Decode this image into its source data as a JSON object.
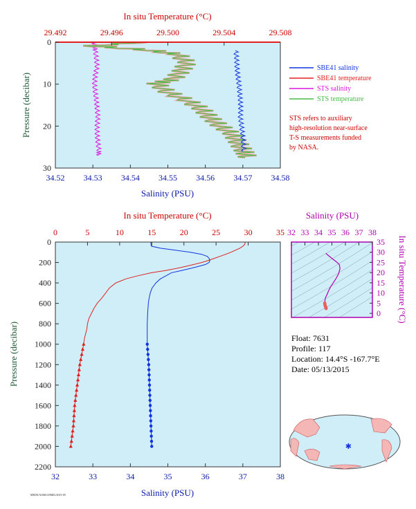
{
  "colors": {
    "salinity_axis": "#0a1aa8",
    "temperature_axis": "#cc0000",
    "pressure_axis": "#1e5a35",
    "inset_axis": "#b000b0",
    "plot_bg": "#cfeef8",
    "sbe41_salinity": "#1133dd",
    "sbe41_temperature": "#e02020",
    "sts_salinity": "#dd11dd",
    "sts_temperature": "#44bb44",
    "sts_temperature_fill": "#f5a0a0"
  },
  "footer": {
    "code": "MEDS/AOML/ISMIG/2015-05"
  },
  "chart_data": [
    {
      "id": "near-surface",
      "type": "line",
      "title": "",
      "top_xlabel": "In situ Temperature (°C)",
      "xlabel": "Salinity (PSU)",
      "ylabel": "Pressure (decibar)",
      "top_xlim": [
        29.492,
        29.508
      ],
      "top_ticks": [
        "29.492",
        "29.496",
        "29.500",
        "29.504",
        "29.508"
      ],
      "xlim": [
        34.52,
        34.58
      ],
      "x_ticks": [
        "34.52",
        "34.53",
        "34.54",
        "34.55",
        "34.56",
        "34.57",
        "34.58"
      ],
      "ylim": [
        30,
        0
      ],
      "y_ticks": [
        "0",
        "10",
        "20",
        "30"
      ],
      "legend": [
        "SBE41 salinity",
        "SBE41 temperature",
        "STS salinity",
        "STS temperature"
      ],
      "note": [
        "STS refers to auxiliary",
        "high-resolution near-surface",
        "T-S measurements funded",
        "by NASA."
      ],
      "series": [
        {
          "name": "STS salinity",
          "axis": "bottom",
          "y": [
            0,
            1,
            2,
            4,
            6,
            8,
            10,
            12,
            14,
            16,
            18,
            20,
            22,
            24,
            26,
            27
          ],
          "x": [
            34.53,
            34.5305,
            34.5305,
            34.5308,
            34.531,
            34.5305,
            34.5303,
            34.5305,
            34.5308,
            34.531,
            34.5312,
            34.531,
            34.531,
            34.5312,
            34.5315,
            34.5315
          ]
        },
        {
          "name": "STS temperature",
          "axis": "top",
          "y": [
            0,
            1,
            2,
            3,
            5,
            7,
            9,
            10,
            12,
            14,
            16,
            18,
            20,
            22,
            24,
            26,
            27.5
          ],
          "x": [
            29.4985,
            29.4945,
            29.4985,
            29.5005,
            29.5012,
            29.5008,
            29.5002,
            29.499,
            29.4998,
            29.5012,
            29.5022,
            29.5028,
            29.5035,
            29.5044,
            29.5048,
            29.5052,
            29.5055
          ]
        },
        {
          "name": "SBE41 salinity",
          "axis": "bottom",
          "y": [
            2,
            4,
            6,
            8,
            10,
            12,
            14,
            16,
            18,
            20,
            22,
            24,
            26
          ],
          "x": [
            34.568,
            34.5682,
            34.5683,
            34.5685,
            34.5688,
            34.569,
            34.5692,
            34.5693,
            34.5692,
            34.5695,
            34.5698,
            34.57,
            34.5701
          ]
        },
        {
          "name": "SBE41 temperature",
          "axis": "top",
          "y": [],
          "x": []
        }
      ]
    },
    {
      "id": "full-profile",
      "type": "line",
      "title": "",
      "top_xlabel": "In situ Temperature (°C)",
      "xlabel": "Salinity (PSU)",
      "ylabel": "Pressure (decibar)",
      "top_xlim": [
        0,
        35
      ],
      "top_ticks": [
        "0",
        "5",
        "10",
        "15",
        "20",
        "25",
        "30",
        "35"
      ],
      "xlim": [
        32,
        38
      ],
      "x_ticks": [
        "32",
        "33",
        "34",
        "35",
        "36",
        "37",
        "38"
      ],
      "ylim": [
        2200,
        0
      ],
      "y_ticks": [
        "0",
        "200",
        "400",
        "600",
        "800",
        "1000",
        "1200",
        "1400",
        "1600",
        "1800",
        "2000",
        "2200"
      ],
      "series": [
        {
          "name": "Temperature",
          "axis": "top",
          "y": [
            0,
            20,
            40,
            60,
            80,
            100,
            120,
            140,
            160,
            180,
            200,
            220,
            250,
            280,
            300,
            330,
            360,
            400,
            450,
            500,
            550,
            600,
            650,
            700,
            750,
            800,
            850,
            900,
            950,
            1000,
            1100,
            1200,
            1300,
            1400,
            1500,
            1600,
            1700,
            1800,
            1900,
            2000
          ],
          "x": [
            29.5,
            29.5,
            29.2,
            28.7,
            28.0,
            27.3,
            26.5,
            25.6,
            24.7,
            23.8,
            22.8,
            21.5,
            19.5,
            17.0,
            15.0,
            12.8,
            11.0,
            9.4,
            8.4,
            7.8,
            7.2,
            6.5,
            6.0,
            5.6,
            5.2,
            5.0,
            4.9,
            4.7,
            4.5,
            4.4,
            4.1,
            3.8,
            3.6,
            3.4,
            3.2,
            3.0,
            2.9,
            2.8,
            2.6,
            2.4
          ]
        },
        {
          "name": "Salinity",
          "axis": "bottom",
          "y": [
            0,
            20,
            40,
            60,
            80,
            100,
            120,
            140,
            160,
            180,
            200,
            220,
            250,
            280,
            300,
            330,
            360,
            400,
            450,
            500,
            550,
            600,
            650,
            700,
            800,
            900,
            1000,
            1100,
            1200,
            1300,
            1400,
            1500,
            1600,
            1700,
            1800,
            1900,
            2000
          ],
          "x": [
            34.55,
            34.55,
            34.56,
            34.8,
            35.2,
            35.6,
            35.9,
            36.05,
            36.1,
            36.12,
            36.1,
            36.0,
            35.7,
            35.35,
            35.1,
            34.95,
            34.8,
            34.68,
            34.58,
            34.53,
            34.5,
            34.48,
            34.47,
            34.46,
            34.45,
            34.45,
            34.45,
            34.47,
            34.49,
            34.5,
            34.51,
            34.52,
            34.53,
            34.54,
            34.55,
            34.56,
            34.57
          ]
        },
        {
          "name": "Temperature markers",
          "axis": "top",
          "marker": "triangle",
          "y": [
            1000,
            1050,
            1100,
            1150,
            1200,
            1250,
            1300,
            1350,
            1400,
            1450,
            1500,
            1550,
            1600,
            1650,
            1700,
            1750,
            1800,
            1850,
            1900,
            1950,
            2000
          ],
          "x": [
            4.4,
            4.25,
            4.1,
            3.95,
            3.8,
            3.7,
            3.6,
            3.5,
            3.4,
            3.3,
            3.2,
            3.1,
            3.0,
            2.95,
            2.9,
            2.85,
            2.8,
            2.7,
            2.6,
            2.5,
            2.4
          ]
        },
        {
          "name": "Salinity markers",
          "axis": "bottom",
          "marker": "circle",
          "y": [
            1000,
            1050,
            1100,
            1150,
            1200,
            1250,
            1300,
            1350,
            1400,
            1450,
            1500,
            1550,
            1600,
            1650,
            1700,
            1750,
            1800,
            1850,
            1900,
            1950,
            2000
          ],
          "x": [
            34.45,
            34.46,
            34.47,
            34.48,
            34.49,
            34.495,
            34.5,
            34.505,
            34.51,
            34.515,
            34.52,
            34.525,
            34.53,
            34.535,
            34.54,
            34.545,
            34.55,
            34.555,
            34.56,
            34.565,
            34.57
          ]
        }
      ]
    },
    {
      "id": "ts-inset",
      "type": "scatter",
      "title": "",
      "top_xlabel": "Salinity (PSU)",
      "right_ylabel": "In situ Temperature (°C)",
      "xlim": [
        32,
        38
      ],
      "x_ticks": [
        "32",
        "33",
        "34",
        "35",
        "36",
        "37",
        "38"
      ],
      "ylim": [
        -2,
        35
      ],
      "y_ticks": [
        "0",
        "5",
        "10",
        "15",
        "20",
        "25",
        "30",
        "35"
      ],
      "series": [
        {
          "name": "T-S curve",
          "x": [
            34.55,
            34.7,
            35.0,
            35.3,
            35.55,
            35.6,
            35.5,
            35.3,
            35.1,
            34.9,
            34.75,
            34.65,
            34.55,
            34.5,
            34.48,
            34.47,
            34.48,
            34.5,
            34.53,
            34.56,
            34.57
          ],
          "y": [
            29.5,
            28.6,
            27.0,
            25.5,
            24.0,
            22.0,
            19.5,
            17.0,
            15.0,
            13.0,
            11.0,
            9.4,
            8.0,
            7.2,
            6.0,
            5.0,
            4.4,
            3.8,
            3.2,
            2.8,
            2.4
          ]
        }
      ]
    }
  ],
  "float_info": {
    "float": "Float:  7631",
    "profile": "Profile:  117",
    "location": "Location:  14.4°S  -167.7°E",
    "date": "Date:  05/13/2015"
  },
  "map": {
    "marker_lon": -167.7,
    "marker_lat": -14.4
  }
}
